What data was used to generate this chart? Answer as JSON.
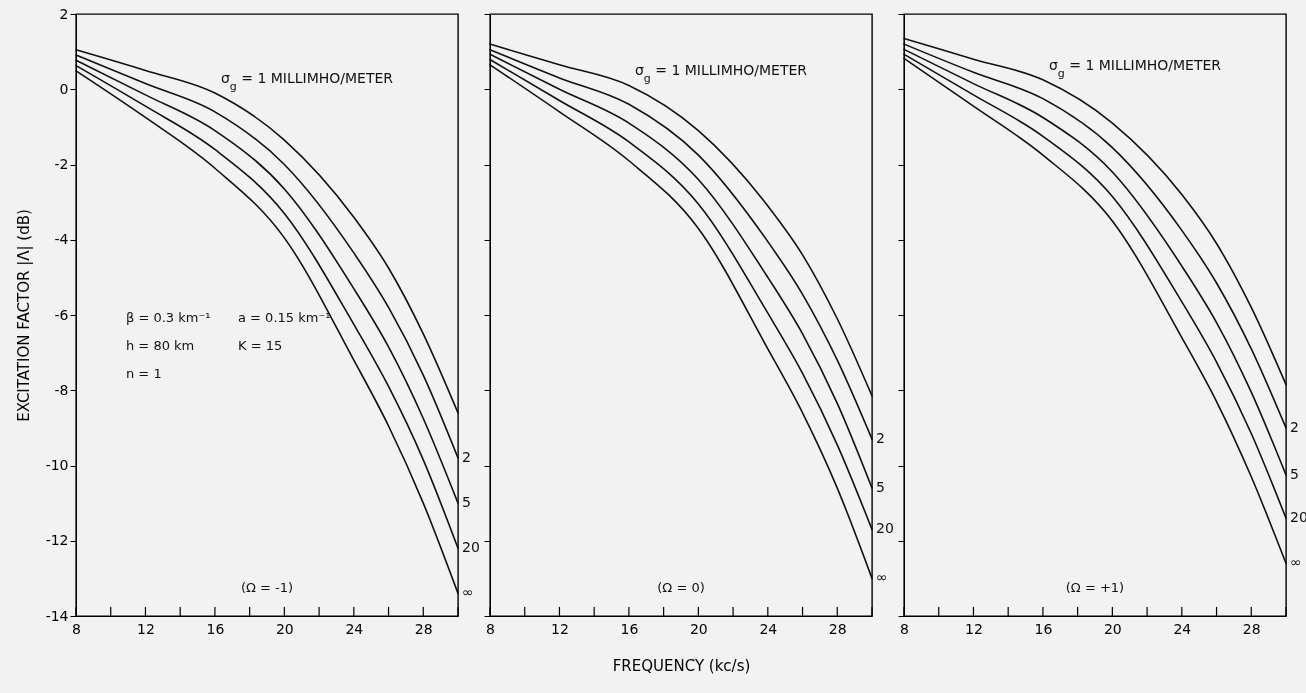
{
  "chart_data": [
    {
      "type": "line",
      "ylabel": "EXCITATION FACTOR |Λ| (dB)",
      "x": [
        8,
        12,
        16,
        20,
        24,
        26,
        28,
        30
      ],
      "xlim": [
        8,
        30
      ],
      "xticks": [
        8,
        {
          "value": 10,
          "label": null
        },
        12,
        {
          "value": 14,
          "label": null
        },
        16,
        {
          "value": 18,
          "label": null
        },
        20,
        {
          "value": 22,
          "label": null
        },
        24,
        {
          "value": 26,
          "label": null
        },
        28,
        {
          "value": 30,
          "label": null
        }
      ],
      "ylim": [
        -14,
        2
      ],
      "yticks": [
        -14,
        -12,
        -10,
        -8,
        -6,
        -4,
        -2,
        0,
        2
      ],
      "series": [
        {
          "name": "σ$_{g}$ = 1 MILLIMHO/METER",
          "color": "#111111",
          "values": [
            1.05,
            0.5,
            -0.1,
            -1.35,
            -3.4,
            -4.75,
            -6.5,
            -8.6
          ]
        },
        {
          "name": "2",
          "color": "#111111",
          "values": [
            0.91,
            0.15,
            -0.6,
            -2.0,
            -4.35,
            -5.8,
            -7.6,
            -9.8
          ]
        },
        {
          "name": "5",
          "color": "#111111",
          "values": [
            0.77,
            -0.15,
            -1.1,
            -2.65,
            -5.3,
            -6.85,
            -8.75,
            -11.0
          ]
        },
        {
          "name": "20",
          "color": "#111111",
          "values": [
            0.63,
            -0.45,
            -1.6,
            -3.3,
            -6.25,
            -7.9,
            -9.85,
            -12.2
          ]
        },
        {
          "name": "∞",
          "color": "#111111",
          "values": [
            0.49,
            -0.75,
            -2.1,
            -3.95,
            -7.2,
            -8.95,
            -11.0,
            -13.4
          ]
        }
      ],
      "annotations": [
        "β = 0.3 km⁻¹",
        "a = 0.15 km⁻¹",
        "h = 80 km",
        "K = 15",
        "n = 1",
        "(Ω = -1)"
      ]
    },
    {
      "type": "line",
      "xlabel": "FREQUENCY (kc/s)",
      "tick_labels": "x",
      "x": [
        8,
        12,
        16,
        20,
        24,
        26,
        28,
        30
      ],
      "xlim": [
        8,
        30
      ],
      "xticks": [
        8,
        {
          "value": 10,
          "label": null
        },
        12,
        {
          "value": 14,
          "label": null
        },
        16,
        {
          "value": 18,
          "label": null
        },
        20,
        {
          "value": 22,
          "label": null
        },
        24,
        {
          "value": 26,
          "label": null
        },
        28,
        {
          "value": 30,
          "label": null
        }
      ],
      "ylim": [
        -14,
        2
      ],
      "yticks": [
        -14,
        -12,
        -10,
        -8,
        -6,
        -4,
        -2,
        0,
        2
      ],
      "series": [
        {
          "name": "σ$_{g}$ = 1 MILLIMHO/METER",
          "color": "#111111",
          "values": [
            1.2,
            0.65,
            0.1,
            -1.1,
            -3.1,
            -4.4,
            -6.1,
            -8.15
          ]
        },
        {
          "name": "2",
          "color": "#111111",
          "values": [
            1.05,
            0.3,
            -0.4,
            -1.75,
            -4.05,
            -5.45,
            -7.2,
            -9.3
          ]
        },
        {
          "name": "5",
          "color": "#111111",
          "values": [
            0.93,
            0.0,
            -0.9,
            -2.4,
            -5.0,
            -6.5,
            -8.35,
            -10.6
          ]
        },
        {
          "name": "20",
          "color": "#111111",
          "values": [
            0.79,
            -0.3,
            -1.4,
            -3.05,
            -5.95,
            -7.55,
            -9.45,
            -11.7
          ]
        },
        {
          "name": "∞",
          "color": "#111111",
          "values": [
            0.65,
            -0.6,
            -1.9,
            -3.7,
            -6.9,
            -8.6,
            -10.6,
            -13.0
          ]
        }
      ],
      "annotations": [
        "(Ω = 0)"
      ]
    },
    {
      "type": "line",
      "tick_labels": "x",
      "x": [
        8,
        12,
        16,
        20,
        24,
        26,
        28,
        30
      ],
      "xlim": [
        8,
        30
      ],
      "xticks": [
        8,
        {
          "value": 10,
          "label": null
        },
        12,
        {
          "value": 14,
          "label": null
        },
        16,
        {
          "value": 18,
          "label": null
        },
        20,
        {
          "value": 22,
          "label": null
        },
        24,
        {
          "value": 26,
          "label": null
        },
        28,
        {
          "value": 30,
          "label": null
        }
      ],
      "ylim": [
        -14,
        2
      ],
      "yticks": [
        -14,
        -12,
        -10,
        -8,
        -6,
        -4,
        -2,
        0,
        2
      ],
      "series": [
        {
          "name": "σ$_{g}$ = 1 MILLIMHO/METER",
          "color": "#111111",
          "values": [
            1.35,
            0.8,
            0.25,
            -0.9,
            -2.8,
            -4.1,
            -5.8,
            -7.85
          ]
        },
        {
          "name": "2",
          "color": "#111111",
          "values": [
            1.2,
            0.45,
            -0.25,
            -1.55,
            -3.75,
            -5.15,
            -6.9,
            -9.0
          ]
        },
        {
          "name": "5",
          "color": "#111111",
          "values": [
            1.06,
            0.15,
            -0.75,
            -2.2,
            -4.7,
            -6.2,
            -8.05,
            -10.25
          ]
        },
        {
          "name": "20",
          "color": "#111111",
          "values": [
            0.93,
            -0.15,
            -1.25,
            -2.85,
            -5.65,
            -7.25,
            -9.15,
            -11.4
          ]
        },
        {
          "name": "∞",
          "color": "#111111",
          "values": [
            0.82,
            -0.45,
            -1.75,
            -3.5,
            -6.6,
            -8.3,
            -10.3,
            -12.6
          ]
        }
      ],
      "annotations": [
        "(Ω = +1)"
      ]
    }
  ]
}
